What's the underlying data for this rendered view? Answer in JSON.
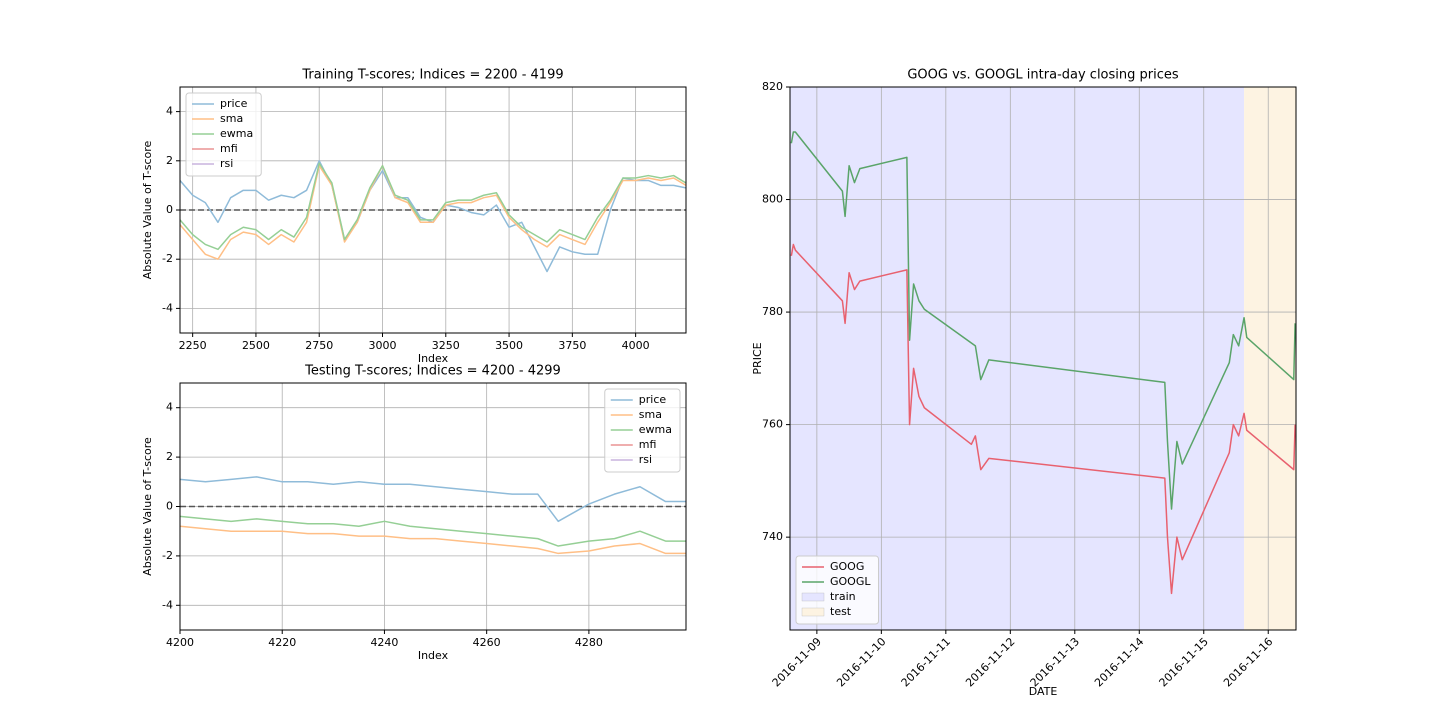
{
  "chart_data": [
    {
      "type": "line",
      "title": "Training T-scores; Indices = 2200 - 4199",
      "xlabel": "Index",
      "ylabel": "Absolute Value of T-score",
      "x": [
        2200,
        2250,
        2300,
        2350,
        2400,
        2450,
        2500,
        2550,
        2600,
        2650,
        2700,
        2750,
        2800,
        2850,
        2900,
        2950,
        3000,
        3050,
        3100,
        3150,
        3200,
        3250,
        3300,
        3350,
        3400,
        3450,
        3500,
        3550,
        3600,
        3650,
        3700,
        3750,
        3800,
        3850,
        3900,
        3950,
        4000,
        4050,
        4100,
        4150,
        4199
      ],
      "series": [
        {
          "name": "price",
          "color": "#8fbbd9",
          "values": [
            1.2,
            0.6,
            0.3,
            -0.5,
            0.5,
            0.8,
            0.8,
            0.4,
            0.6,
            0.5,
            0.8,
            2.0,
            1.0,
            -1.2,
            -0.5,
            0.8,
            1.6,
            0.5,
            0.5,
            -0.3,
            -0.5,
            0.2,
            0.1,
            -0.1,
            -0.2,
            0.2,
            -0.7,
            -0.5,
            -1.5,
            -2.5,
            -1.5,
            -1.7,
            -1.8,
            -1.8,
            0.0,
            1.3,
            1.2,
            1.2,
            1.0,
            1.0,
            0.9
          ]
        },
        {
          "name": "sma",
          "color": "#ffbf86",
          "values": [
            -0.6,
            -1.2,
            -1.8,
            -2.0,
            -1.2,
            -0.9,
            -1.0,
            -1.4,
            -1.0,
            -1.3,
            -0.5,
            1.8,
            1.0,
            -1.3,
            -0.5,
            0.8,
            1.8,
            0.5,
            0.3,
            -0.5,
            -0.5,
            0.2,
            0.3,
            0.3,
            0.5,
            0.6,
            -0.3,
            -0.8,
            -1.2,
            -1.5,
            -1.0,
            -1.2,
            -1.4,
            -0.5,
            0.3,
            1.2,
            1.2,
            1.3,
            1.2,
            1.3,
            1.0
          ]
        },
        {
          "name": "ewma",
          "color": "#95cf95",
          "values": [
            -0.4,
            -1.0,
            -1.4,
            -1.6,
            -1.0,
            -0.7,
            -0.8,
            -1.2,
            -0.8,
            -1.1,
            -0.3,
            1.9,
            1.1,
            -1.2,
            -0.4,
            0.9,
            1.8,
            0.6,
            0.4,
            -0.4,
            -0.4,
            0.3,
            0.4,
            0.4,
            0.6,
            0.7,
            -0.2,
            -0.7,
            -1.0,
            -1.3,
            -0.8,
            -1.0,
            -1.2,
            -0.3,
            0.4,
            1.3,
            1.3,
            1.4,
            1.3,
            1.4,
            1.1
          ]
        },
        {
          "name": "mfi",
          "color": "#ea9393",
          "values": [
            null,
            null,
            null,
            null,
            null,
            null,
            null,
            null,
            null,
            null,
            null,
            null,
            null,
            null,
            null,
            null,
            null,
            null,
            null,
            null,
            null,
            null,
            null,
            null,
            null,
            null,
            null,
            null,
            null,
            null,
            null,
            null,
            null,
            null,
            null,
            null,
            null,
            null,
            null,
            null,
            null
          ]
        },
        {
          "name": "rsi",
          "color": "#c9b3de",
          "values": [
            null,
            null,
            null,
            null,
            null,
            null,
            null,
            null,
            null,
            null,
            null,
            null,
            null,
            null,
            null,
            null,
            null,
            null,
            null,
            null,
            null,
            null,
            null,
            null,
            null,
            null,
            null,
            null,
            null,
            null,
            null,
            null,
            null,
            null,
            null,
            null,
            null,
            null,
            null,
            null,
            null
          ]
        }
      ],
      "xlim": [
        2200,
        4199
      ],
      "xticks": [
        2250,
        2500,
        2750,
        3000,
        3250,
        3500,
        3750,
        4000
      ],
      "ylim": [
        -5,
        5
      ],
      "yticks": [
        -4,
        -2,
        0,
        2,
        4
      ],
      "reference_line": 0,
      "grid": true,
      "legend": "upper left"
    },
    {
      "type": "line",
      "title": "Testing T-scores; Indices = 4200 - 4299",
      "xlabel": "Index",
      "ylabel": "Absolute Value of T-score",
      "x": [
        4200,
        4205,
        4210,
        4215,
        4220,
        4225,
        4230,
        4235,
        4240,
        4245,
        4250,
        4255,
        4260,
        4265,
        4270,
        4274,
        4280,
        4285,
        4290,
        4295,
        4299
      ],
      "series": [
        {
          "name": "price",
          "color": "#8fbbd9",
          "values": [
            1.1,
            1.0,
            1.1,
            1.2,
            1.0,
            1.0,
            0.9,
            1.0,
            0.9,
            0.9,
            0.8,
            0.7,
            0.6,
            0.5,
            0.5,
            -0.6,
            0.1,
            0.5,
            0.8,
            0.2,
            0.2
          ]
        },
        {
          "name": "sma",
          "color": "#ffbf86",
          "values": [
            -0.8,
            -0.9,
            -1.0,
            -1.0,
            -1.0,
            -1.1,
            -1.1,
            -1.2,
            -1.2,
            -1.3,
            -1.3,
            -1.4,
            -1.5,
            -1.6,
            -1.7,
            -1.9,
            -1.8,
            -1.6,
            -1.5,
            -1.9,
            -1.9
          ]
        },
        {
          "name": "ewma",
          "color": "#95cf95",
          "values": [
            -0.4,
            -0.5,
            -0.6,
            -0.5,
            -0.6,
            -0.7,
            -0.7,
            -0.8,
            -0.6,
            -0.8,
            -0.9,
            -1.0,
            -1.1,
            -1.2,
            -1.3,
            -1.6,
            -1.4,
            -1.3,
            -1.0,
            -1.4,
            -1.4
          ]
        },
        {
          "name": "mfi",
          "color": "#ea9393",
          "values": [
            null,
            null,
            null,
            null,
            null,
            null,
            null,
            null,
            null,
            null,
            null,
            null,
            null,
            null,
            null,
            null,
            null,
            null,
            null,
            null,
            null
          ]
        },
        {
          "name": "rsi",
          "color": "#c9b3de",
          "values": [
            null,
            null,
            null,
            null,
            null,
            null,
            null,
            null,
            null,
            null,
            null,
            null,
            null,
            null,
            null,
            null,
            null,
            null,
            null,
            null,
            null
          ]
        }
      ],
      "xlim": [
        4200,
        4299
      ],
      "xticks": [
        4200,
        4220,
        4240,
        4260,
        4280
      ],
      "ylim": [
        -5,
        5
      ],
      "yticks": [
        -4,
        -2,
        0,
        2,
        4
      ],
      "reference_line": 0,
      "grid": true,
      "legend": "upper right"
    },
    {
      "type": "line",
      "title": "GOOG vs. GOOGL intra-day closing prices",
      "xlabel": "DATE",
      "ylabel": "PRICE",
      "x": [
        "2016-11-08 14:30",
        "2016-11-08 15:15",
        "2016-11-08 16:00",
        "2016-11-09 09:30",
        "2016-11-09 10:30",
        "2016-11-09 12:00",
        "2016-11-09 14:00",
        "2016-11-09 16:00",
        "2016-11-10 09:30",
        "2016-11-10 10:30",
        "2016-11-10 12:00",
        "2016-11-10 14:00",
        "2016-11-10 16:00",
        "2016-11-11 09:30",
        "2016-11-11 11:00",
        "2016-11-11 13:00",
        "2016-11-11 16:00",
        "2016-11-14 09:30",
        "2016-11-14 10:30",
        "2016-11-14 12:00",
        "2016-11-14 14:00",
        "2016-11-14 16:00",
        "2016-11-15 09:30",
        "2016-11-15 11:00",
        "2016-11-15 13:00",
        "2016-11-15 15:00",
        "2016-11-15 16:00",
        "2016-11-16 09:30",
        "2016-11-16 10:00"
      ],
      "series": [
        {
          "name": "GOOG",
          "color": "#e8616f",
          "values": [
            790,
            792,
            791,
            782,
            778,
            787,
            784,
            785.5,
            787.5,
            760,
            770,
            765,
            763,
            756.5,
            758,
            752,
            754,
            750.5,
            740,
            730,
            740,
            736,
            755,
            760,
            758,
            762,
            759,
            752,
            760
          ]
        },
        {
          "name": "GOOGL",
          "color": "#5aa469",
          "values": [
            810,
            812,
            812,
            801.5,
            797,
            806,
            803,
            805.5,
            807.5,
            775,
            785,
            782,
            780.5,
            774.5,
            774,
            768,
            771.5,
            767.5,
            757,
            745,
            757,
            753,
            771,
            776,
            774,
            779,
            775.5,
            768,
            778
          ]
        }
      ],
      "regions": [
        {
          "name": "train",
          "color": "#e5e5ff",
          "start": "2016-11-08 14:00",
          "end": "2016-11-15 15:00"
        },
        {
          "name": "test",
          "color": "#fdf3e2",
          "start": "2016-11-15 15:00",
          "end": "2016-11-16 10:20"
        }
      ],
      "xlim": [
        "2016-11-08 14:00",
        "2016-11-16 10:20"
      ],
      "xticks": [
        "2016-11-09",
        "2016-11-10",
        "2016-11-11",
        "2016-11-12",
        "2016-11-13",
        "2016-11-14",
        "2016-11-15",
        "2016-11-16"
      ],
      "xtick_rotation": 45,
      "ylim": [
        723.5,
        820
      ],
      "yticks": [
        740,
        760,
        780,
        800,
        820
      ],
      "grid": true,
      "legend": "lower left"
    }
  ]
}
